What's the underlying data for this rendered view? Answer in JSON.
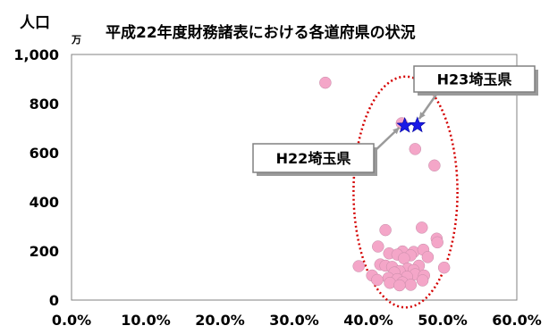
{
  "chart_data": {
    "type": "scatter",
    "title": "平成22年度財務諸表における各道府県の状況",
    "ylabel": "人口",
    "yunit": "万",
    "xlim": [
      0,
      60
    ],
    "ylim": [
      0,
      1000
    ],
    "xticks": [
      "0.0%",
      "10.0%",
      "20.0%",
      "30.0%",
      "40.0%",
      "50.0%",
      "60.0%"
    ],
    "yticks": [
      "0",
      "200",
      "400",
      "600",
      "800",
      "1,000"
    ],
    "grid": false,
    "colors": {
      "points": "#f4a6c8",
      "highlight": "#1a1ae6",
      "ellipse": "#d40000"
    },
    "series": [
      {
        "marker": "circle",
        "points": [
          [
            34.2,
            885
          ],
          [
            44.5,
            720
          ],
          [
            46.3,
            615
          ],
          [
            48.9,
            548
          ],
          [
            47.2,
            295
          ],
          [
            42.3,
            285
          ],
          [
            49.2,
            250
          ],
          [
            49.3,
            235
          ],
          [
            41.3,
            218
          ],
          [
            44.6,
            198
          ],
          [
            46.1,
            196
          ],
          [
            47.4,
            205
          ],
          [
            42.8,
            190
          ],
          [
            43.9,
            185
          ],
          [
            45.7,
            182
          ],
          [
            44.8,
            170
          ],
          [
            48.0,
            175
          ],
          [
            41.6,
            145
          ],
          [
            42.3,
            140
          ],
          [
            43.2,
            135
          ],
          [
            38.7,
            138
          ],
          [
            46.8,
            140
          ],
          [
            50.2,
            132
          ],
          [
            45.3,
            128
          ],
          [
            44.2,
            118
          ],
          [
            46.1,
            122
          ],
          [
            43.5,
            112
          ],
          [
            46.3,
            105
          ],
          [
            47.5,
            100
          ],
          [
            40.5,
            100
          ],
          [
            42.7,
            90
          ],
          [
            45.2,
            95
          ],
          [
            43.9,
            85
          ],
          [
            44.6,
            72
          ],
          [
            47.3,
            80
          ],
          [
            41.2,
            82
          ],
          [
            42.9,
            70
          ],
          [
            45.7,
            62
          ],
          [
            44.2,
            60
          ]
        ]
      },
      {
        "marker": "star",
        "points": [
          [
            44.9,
            710
          ],
          [
            46.6,
            712
          ]
        ]
      }
    ],
    "annotations": [
      {
        "text": "H22埼玉県",
        "target": [
          44.9,
          710
        ]
      },
      {
        "text": "H23埼玉県",
        "target": [
          46.6,
          712
        ]
      }
    ],
    "highlight_region": {
      "type": "ellipse",
      "center": [
        45,
        440
      ],
      "rx": 7,
      "ry": 470
    }
  }
}
